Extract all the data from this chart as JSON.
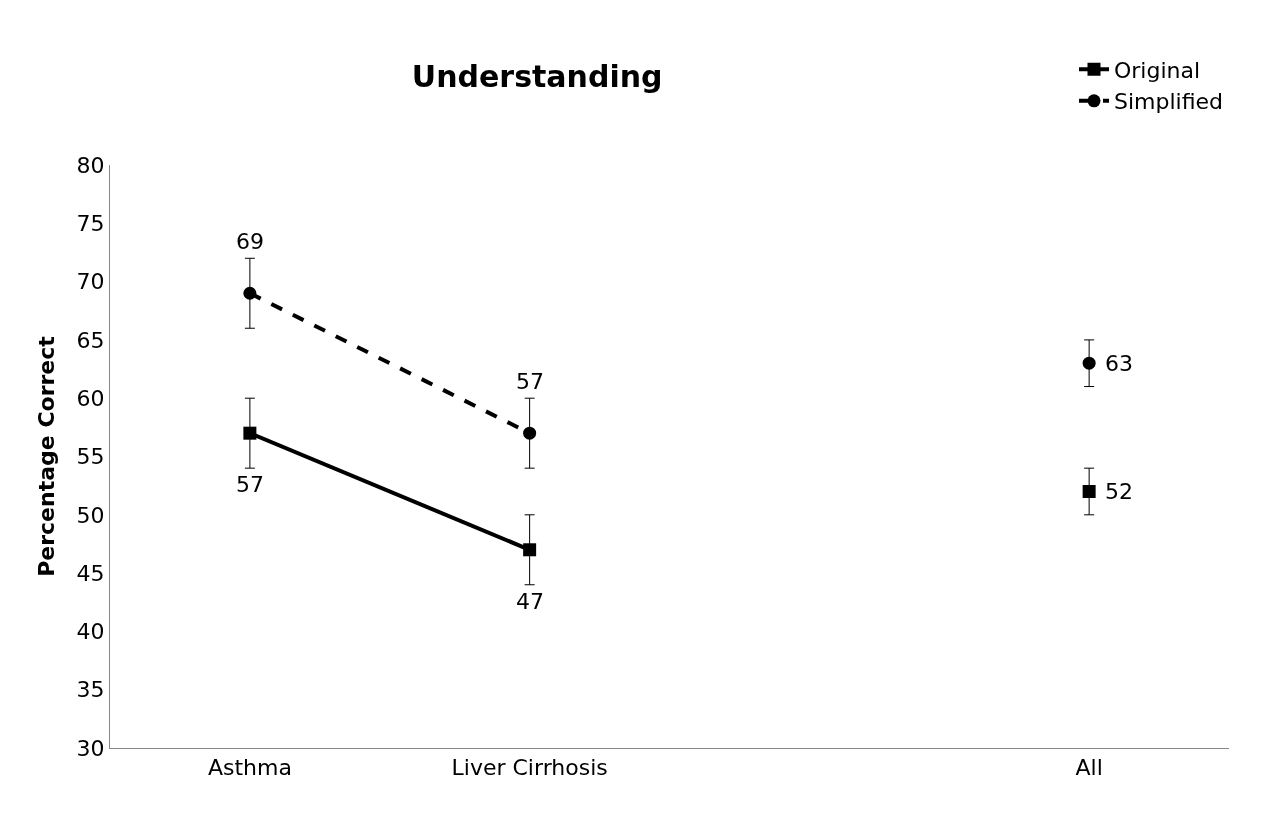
{
  "chart_data": {
    "type": "line",
    "title": "Understanding",
    "ylabel": "Percentage Correct",
    "categories": [
      "Asthma",
      "Liver Cirrhosis",
      null,
      "All"
    ],
    "series": [
      {
        "name": "Original",
        "color": "#000000",
        "values": [
          57,
          47,
          null,
          52
        ],
        "errors": [
          3,
          3,
          null,
          2
        ],
        "marker": "square",
        "line_style": "solid"
      },
      {
        "name": "Simplified",
        "color": "#000000",
        "values": [
          69,
          57,
          null,
          63
        ],
        "errors": [
          3,
          3,
          null,
          2
        ],
        "marker": "circle",
        "line_style": "dashed"
      }
    ],
    "ylim": [
      30,
      80
    ],
    "yticks": [
      30,
      35,
      40,
      45,
      50,
      55,
      60,
      65,
      70,
      75,
      80
    ],
    "legend": "top right",
    "data_labels": true
  }
}
